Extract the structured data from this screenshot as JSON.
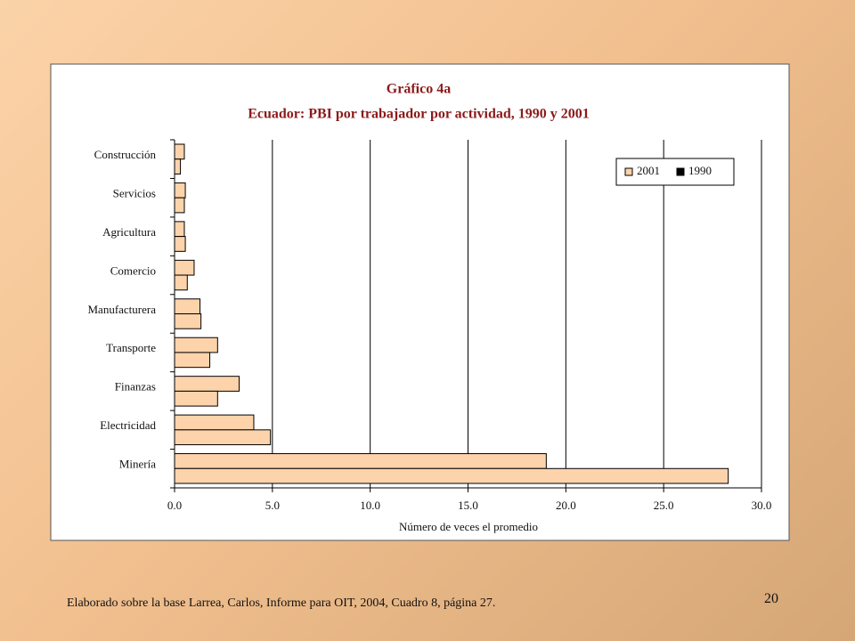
{
  "chart_data": {
    "type": "bar",
    "orientation": "horizontal",
    "title": "Gráfico 4a",
    "subtitle": "Ecuador: PBI por trabajador por actividad, 1990 y 2001",
    "x_label": "Número de veces el promedio",
    "categories": [
      "Construcción",
      "Servicios",
      "Agricultura",
      "Comercio",
      "Manufacturera",
      "Transporte",
      "Finanzas",
      "Electricidad",
      "Minería"
    ],
    "series": [
      {
        "name": "2001",
        "color": "#fcd3aa",
        "legend_color": "#fcd3aa",
        "values": [
          0.5,
          0.55,
          0.5,
          1.0,
          1.3,
          2.2,
          3.3,
          4.05,
          19.0
        ]
      },
      {
        "name": "1990",
        "color": "#fcd3aa",
        "legend_color": "#000000",
        "values": [
          0.3,
          0.5,
          0.55,
          0.65,
          1.35,
          1.8,
          2.2,
          4.9,
          28.3
        ]
      }
    ],
    "xlim": [
      0,
      30
    ],
    "xticks": [
      {
        "value": 0,
        "label": "0.0"
      },
      {
        "value": 5,
        "label": "5.0"
      },
      {
        "value": 10,
        "label": "10.0"
      },
      {
        "value": 15,
        "label": "15.0"
      },
      {
        "value": 20,
        "label": "20.0"
      },
      {
        "value": 25,
        "label": "25.0"
      },
      {
        "value": 30,
        "label": "30.0"
      }
    ],
    "grid": true,
    "legend_position": "upper right"
  },
  "source": "Elaborado sobre la base Larrea, Carlos, Informe para OIT, 2004, Cuadro 8, página 27.",
  "page_number": "20"
}
